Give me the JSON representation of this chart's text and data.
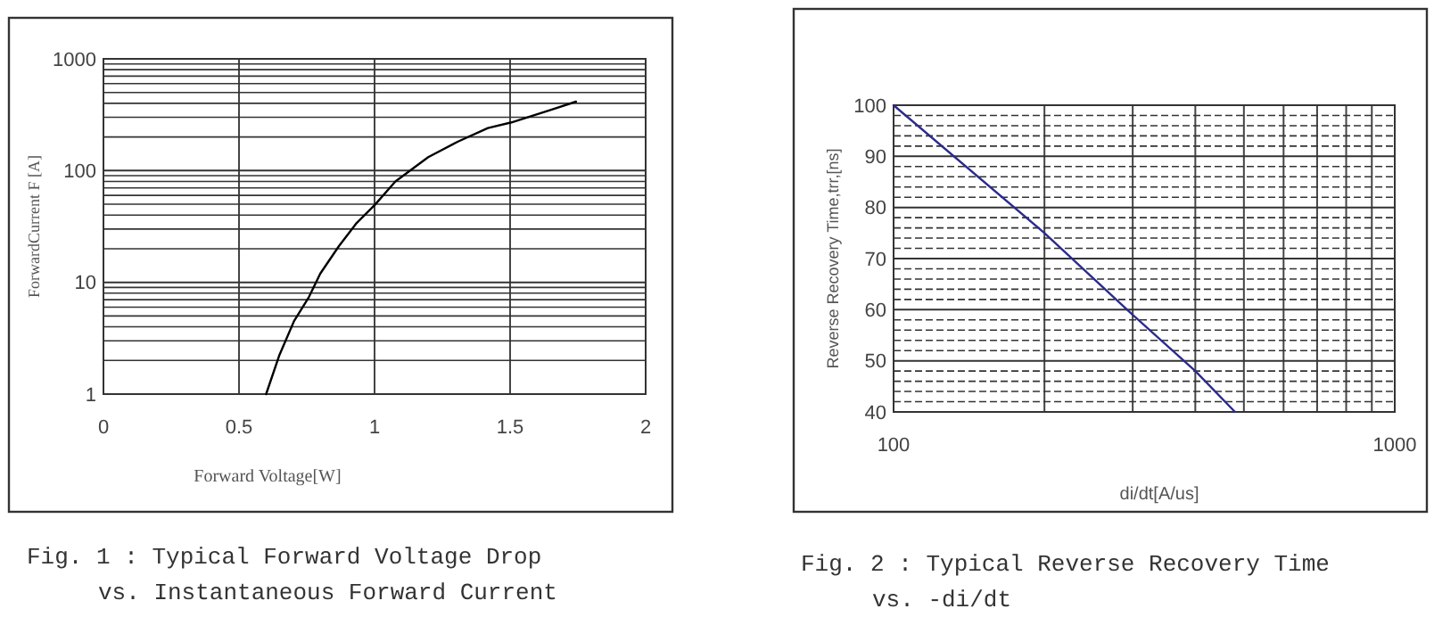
{
  "chart_data": [
    {
      "type": "line",
      "xlabel": "Forward Voltage[W]",
      "ylabel": "ForwardCurrent F [A]",
      "log": "y",
      "grid": true,
      "xlim": [
        0,
        2
      ],
      "ylim": [
        1,
        1000
      ],
      "xticks": [
        0,
        0.5,
        1,
        1.5,
        2
      ],
      "yticks": [
        1,
        {
          "value": 2,
          "label": null
        },
        {
          "value": 3,
          "label": null
        },
        {
          "value": 4,
          "label": null
        },
        {
          "value": 5,
          "label": null
        },
        {
          "value": 6,
          "label": null
        },
        {
          "value": 7,
          "label": null
        },
        {
          "value": 8,
          "label": null
        },
        {
          "value": 9,
          "label": null
        },
        10,
        {
          "value": 20,
          "label": null
        },
        {
          "value": 30,
          "label": null
        },
        {
          "value": 40,
          "label": null
        },
        {
          "value": 50,
          "label": null
        },
        {
          "value": 60,
          "label": null
        },
        {
          "value": 70,
          "label": null
        },
        {
          "value": 80,
          "label": null
        },
        {
          "value": 90,
          "label": null
        },
        100,
        {
          "value": 200,
          "label": null
        },
        {
          "value": 300,
          "label": null
        },
        {
          "value": 400,
          "label": null
        },
        {
          "value": 500,
          "label": null
        },
        {
          "value": 600,
          "label": null
        },
        {
          "value": 700,
          "label": null
        },
        {
          "value": 800,
          "label": null
        },
        {
          "value": 900,
          "label": null
        },
        1000
      ],
      "x": [
        0.6,
        0.648,
        0.703,
        0.758,
        0.8,
        0.868,
        0.934,
        1.0,
        1.077,
        1.198,
        1.308,
        1.418,
        1.505,
        1.659,
        1.743
      ],
      "series": [
        {
          "color": "#000000",
          "values": [
            1,
            2.2,
            4.5,
            7.4,
            12,
            21,
            34,
            49,
            80,
            132,
            182,
            240,
            270,
            355,
            414
          ]
        }
      ],
      "annotations": [
        "Fig. 1 : Typical Forward Voltage Drop",
        "vs. Instantaneous Forward Current"
      ]
    },
    {
      "type": "line",
      "xlabel": "di/dt[A/us]",
      "ylabel": "Reverse Recovery Time,trr,[ns]",
      "log": "x",
      "grid": true,
      "xlim": [
        100,
        1000
      ],
      "ylim": [
        40,
        100
      ],
      "xticks": [
        100,
        {
          "value": 200,
          "label": null
        },
        {
          "value": 300,
          "label": null
        },
        {
          "value": 400,
          "label": null
        },
        {
          "value": 500,
          "label": null
        },
        {
          "value": 600,
          "label": null
        },
        {
          "value": 700,
          "label": null
        },
        {
          "value": 800,
          "label": null
        },
        {
          "value": 900,
          "label": null
        },
        1000
      ],
      "yticks": [
        40,
        {
          "value": 42,
          "label": null
        },
        {
          "value": 44,
          "label": null
        },
        {
          "value": 46,
          "label": null
        },
        {
          "value": 48,
          "label": null
        },
        50,
        {
          "value": 52,
          "label": null
        },
        {
          "value": 54,
          "label": null
        },
        {
          "value": 56,
          "label": null
        },
        {
          "value": 58,
          "label": null
        },
        60,
        {
          "value": 62,
          "label": null
        },
        {
          "value": 64,
          "label": null
        },
        {
          "value": 66,
          "label": null
        },
        {
          "value": 68,
          "label": null
        },
        70,
        {
          "value": 72,
          "label": null
        },
        {
          "value": 74,
          "label": null
        },
        {
          "value": 76,
          "label": null
        },
        {
          "value": 78,
          "label": null
        },
        80,
        {
          "value": 82,
          "label": null
        },
        {
          "value": 84,
          "label": null
        },
        {
          "value": 86,
          "label": null
        },
        {
          "value": 88,
          "label": null
        },
        90,
        {
          "value": 92,
          "label": null
        },
        {
          "value": 94,
          "label": null
        },
        {
          "value": 96,
          "label": null
        },
        {
          "value": 98,
          "label": null
        },
        100
      ],
      "x": [
        100,
        200,
        300,
        400,
        480
      ],
      "series": [
        {
          "color": "#2b2b8c",
          "values": [
            100,
            75,
            59,
            48,
            40
          ]
        }
      ],
      "annotations": [
        "Fig. 2 : Typical Reverse Recovery Time",
        "vs. -di/dt"
      ]
    }
  ]
}
